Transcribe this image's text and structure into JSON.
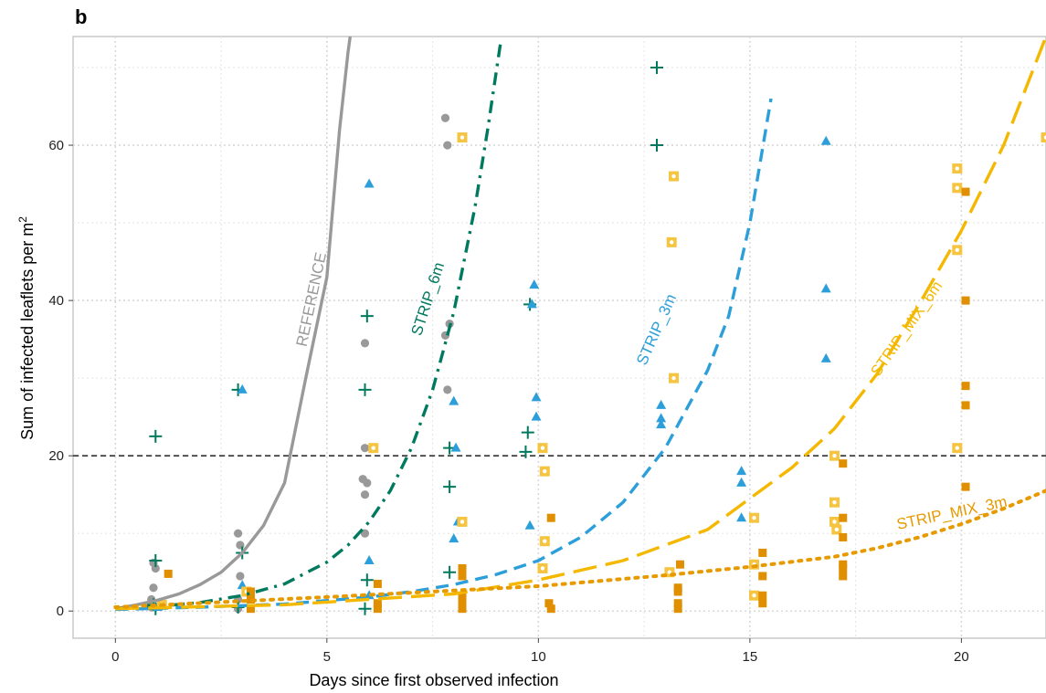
{
  "panel_label": "b",
  "chart_data": {
    "type": "scatter",
    "xlabel": "Days since first observed infection",
    "ylabel_main": "Sum of infected leaflets per m",
    "ylabel_sup": "2",
    "xlim": [
      -1,
      22
    ],
    "ylim": [
      -3.5,
      74
    ],
    "x_ticks": [
      0,
      5,
      10,
      15,
      20
    ],
    "y_ticks": [
      0,
      20,
      40,
      60
    ],
    "grid": true,
    "threshold": 20,
    "curves": [
      {
        "name": "REFERENCE",
        "color": "#999999",
        "dash": "none",
        "x": [
          0,
          0.5,
          1,
          1.5,
          2,
          2.5,
          3,
          3.5,
          4,
          4.5,
          5,
          5.3,
          5.5,
          5.55
        ],
        "y": [
          0.3,
          0.8,
          1.4,
          2.2,
          3.4,
          5,
          7.5,
          11,
          16.5,
          30,
          43,
          62,
          72,
          74
        ]
      },
      {
        "name": "STRIP_6m",
        "color": "#007a5e",
        "dash": "14 7 3 7",
        "x": [
          0,
          1,
          2,
          3,
          4,
          5,
          5.5,
          6,
          6.5,
          7,
          7.5,
          8,
          8.5,
          8.8,
          9.1
        ],
        "y": [
          0.3,
          0.6,
          1.1,
          2.0,
          3.5,
          6.3,
          8.5,
          11.5,
          15.5,
          21,
          28.5,
          38.5,
          52,
          62,
          73
        ]
      },
      {
        "name": "STRIP_3m",
        "color": "#2c9fdb",
        "dash": "14 8",
        "x": [
          0,
          2,
          4,
          6,
          7,
          8,
          9,
          10,
          11,
          12,
          13,
          14,
          14.5,
          15,
          15.5
        ],
        "y": [
          0.2,
          0.5,
          0.9,
          1.8,
          2.5,
          3.4,
          4.7,
          6.5,
          9.5,
          14,
          21,
          31,
          38,
          50,
          66
        ]
      },
      {
        "name": "STRIP_MIX_6m",
        "color": "#f5b800",
        "dash": "26 10",
        "x": [
          0,
          4,
          8,
          10,
          12,
          14,
          15,
          16,
          17,
          18,
          19,
          20,
          21,
          22
        ],
        "y": [
          0.3,
          0.8,
          2.2,
          4.0,
          6.5,
          10.5,
          14.5,
          18.5,
          23.5,
          30.5,
          39.5,
          49,
          60,
          74
        ]
      },
      {
        "name": "STRIP_MIX_3m",
        "color": "#e79a00",
        "dash": "3 7",
        "x": [
          0,
          5,
          10,
          13,
          15,
          17,
          18,
          19,
          20,
          21,
          22
        ],
        "y": [
          0.5,
          1.8,
          3.2,
          4.6,
          5.7,
          7.0,
          8.1,
          9.5,
          11.2,
          13.2,
          15.5
        ]
      }
    ],
    "label_positions": {
      "REFERENCE": {
        "x": 4.75,
        "y": 40,
        "angle": -78
      },
      "STRIP_6m": {
        "x": 7.5,
        "y": 40,
        "angle": -72
      },
      "STRIP_3m": {
        "x": 12.9,
        "y": 36,
        "angle": -66
      },
      "STRIP_MIX_6m": {
        "x": 18.8,
        "y": 36,
        "angle": -55
      },
      "STRIP_MIX_3m": {
        "x": 19.8,
        "y": 12,
        "angle": -12
      }
    },
    "series": [
      {
        "name": "REFERENCE",
        "marker": "circle",
        "color": "#999999",
        "points": [
          [
            0.85,
            0.5
          ],
          [
            0.85,
            1.5
          ],
          [
            0.9,
            3
          ],
          [
            0.95,
            5.5
          ],
          [
            0.9,
            6.2
          ],
          [
            2.9,
            0.3
          ],
          [
            2.9,
            1.5
          ],
          [
            2.95,
            4.5
          ],
          [
            2.95,
            8.5
          ],
          [
            2.9,
            10
          ],
          [
            5.9,
            10
          ],
          [
            5.9,
            15
          ],
          [
            5.95,
            16.5
          ],
          [
            5.85,
            17
          ],
          [
            5.9,
            21
          ],
          [
            5.9,
            34.5
          ],
          [
            7.85,
            28.5
          ],
          [
            7.8,
            35.5
          ],
          [
            7.9,
            37
          ],
          [
            7.85,
            60
          ],
          [
            7.8,
            63.5
          ]
        ]
      },
      {
        "name": "STRIP_6m",
        "marker": "plus",
        "color": "#007a5e",
        "points": [
          [
            0.95,
            0.3
          ],
          [
            0.9,
            0.8
          ],
          [
            0.95,
            6.5
          ],
          [
            0.95,
            22.5
          ],
          [
            2.9,
            0.5
          ],
          [
            3.0,
            7.5
          ],
          [
            2.9,
            28.5
          ],
          [
            5.9,
            0.3
          ],
          [
            5.95,
            4
          ],
          [
            5.9,
            28.5
          ],
          [
            5.95,
            38
          ],
          [
            7.9,
            5
          ],
          [
            7.9,
            16
          ],
          [
            7.9,
            21
          ],
          [
            9.7,
            20.5
          ],
          [
            9.75,
            23
          ],
          [
            9.8,
            39.5
          ],
          [
            12.8,
            60
          ],
          [
            12.8,
            70
          ]
        ]
      },
      {
        "name": "STRIP_3m",
        "marker": "triangle",
        "color": "#2c9fdb",
        "points": [
          [
            1.0,
            0.5
          ],
          [
            3.0,
            3.3
          ],
          [
            3.0,
            28.5
          ],
          [
            6.0,
            2
          ],
          [
            6.0,
            6.5
          ],
          [
            6.0,
            55
          ],
          [
            8.0,
            9.3
          ],
          [
            8.1,
            11.5
          ],
          [
            8.05,
            21
          ],
          [
            8.0,
            27
          ],
          [
            9.8,
            11
          ],
          [
            9.85,
            39.5
          ],
          [
            9.9,
            42
          ],
          [
            9.95,
            25
          ],
          [
            9.95,
            27.5
          ],
          [
            12.9,
            24
          ],
          [
            12.9,
            24.8
          ],
          [
            12.9,
            26.5
          ],
          [
            14.8,
            12
          ],
          [
            14.8,
            16.5
          ],
          [
            14.8,
            18
          ],
          [
            16.8,
            32.5
          ],
          [
            16.8,
            41.5
          ],
          [
            16.8,
            60.5
          ]
        ]
      },
      {
        "name": "STRIP_MIX_6m",
        "marker": "square-dotted",
        "color": "#f5c542",
        "points": [
          [
            1.1,
            0.8
          ],
          [
            3.1,
            2.5
          ],
          [
            6.1,
            21
          ],
          [
            8.2,
            61
          ],
          [
            8.2,
            11.5
          ],
          [
            10.1,
            5.5
          ],
          [
            10.15,
            9
          ],
          [
            10.15,
            18
          ],
          [
            10.1,
            21
          ],
          [
            13.1,
            5
          ],
          [
            13.2,
            30
          ],
          [
            13.15,
            47.5
          ],
          [
            13.2,
            56
          ],
          [
            15.1,
            2
          ],
          [
            15.1,
            6
          ],
          [
            15.1,
            12
          ],
          [
            17.0,
            20
          ],
          [
            17.0,
            14
          ],
          [
            17.0,
            11.5
          ],
          [
            17.05,
            10.5
          ],
          [
            19.9,
            21
          ],
          [
            19.9,
            46.5
          ],
          [
            19.9,
            54.5
          ],
          [
            19.9,
            57
          ],
          [
            22,
            61
          ]
        ]
      },
      {
        "name": "STRIP_MIX_3m",
        "marker": "square",
        "color": "#e08f00",
        "points": [
          [
            1.25,
            4.8
          ],
          [
            3.2,
            0.3
          ],
          [
            3.2,
            1.5
          ],
          [
            3.2,
            2.5
          ],
          [
            6.2,
            0.3
          ],
          [
            6.2,
            1
          ],
          [
            6.2,
            3.5
          ],
          [
            8.2,
            0.3
          ],
          [
            8.2,
            1
          ],
          [
            8.2,
            2
          ],
          [
            8.2,
            4.5
          ],
          [
            8.2,
            5.5
          ],
          [
            10.3,
            0.3
          ],
          [
            10.25,
            1
          ],
          [
            10.3,
            12
          ],
          [
            13.3,
            0.3
          ],
          [
            13.3,
            1
          ],
          [
            13.3,
            2.5
          ],
          [
            13.3,
            3
          ],
          [
            13.35,
            6
          ],
          [
            15.3,
            1
          ],
          [
            15.3,
            2
          ],
          [
            15.3,
            4.5
          ],
          [
            15.3,
            7.5
          ],
          [
            17.2,
            4.5
          ],
          [
            17.2,
            5.5
          ],
          [
            17.2,
            6
          ],
          [
            17.2,
            9.5
          ],
          [
            17.2,
            12
          ],
          [
            17.2,
            19
          ],
          [
            20.1,
            16
          ],
          [
            20.1,
            26.5
          ],
          [
            20.1,
            29
          ],
          [
            20.1,
            40
          ],
          [
            20.1,
            54
          ]
        ]
      }
    ]
  }
}
